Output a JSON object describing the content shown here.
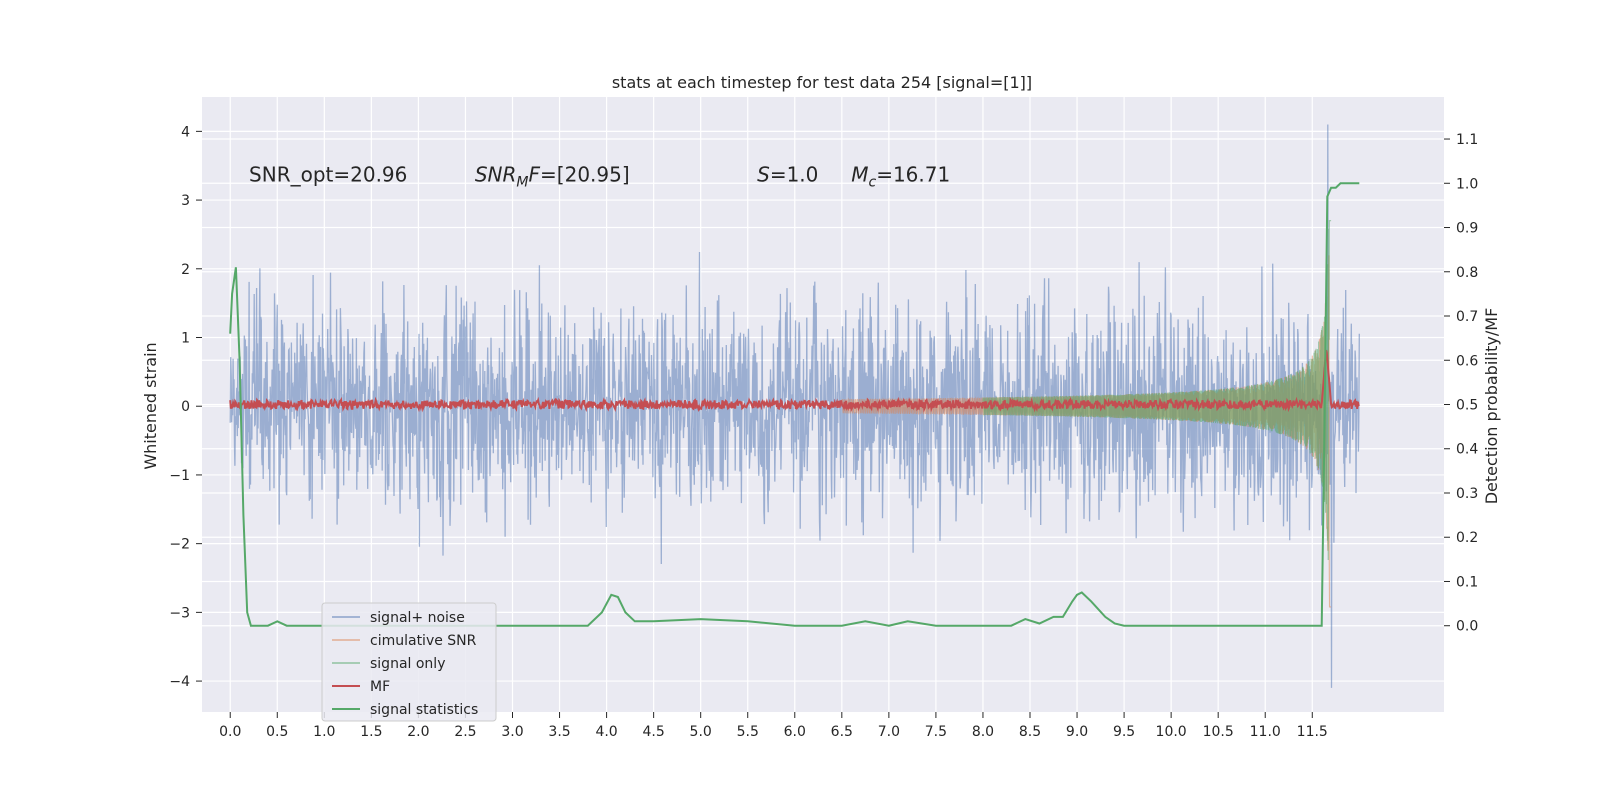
{
  "chart_data": {
    "type": "line",
    "title": "stats at each timestep for test data 254 [signal=[1]]",
    "xlabel": "",
    "ylabel": "Whitened strain",
    "y2label": "Detection probability/MF",
    "xlim": [
      -0.3,
      12.9
    ],
    "ylim": [
      -4.45,
      4.5
    ],
    "y2lim": [
      -0.195,
      1.195
    ],
    "xticks": [
      0.0,
      0.5,
      1.0,
      1.5,
      2.0,
      2.5,
      3.0,
      3.5,
      4.0,
      4.5,
      5.0,
      5.5,
      6.0,
      6.5,
      7.0,
      7.5,
      8.0,
      8.5,
      9.0,
      9.5,
      10.0,
      10.5,
      11.0,
      11.5
    ],
    "xtick_labels": [
      "0.0",
      "0.5",
      "1.0",
      "1.5",
      "2.0",
      "2.5",
      "3.0",
      "3.5",
      "4.0",
      "4.5",
      "5.0",
      "5.5",
      "6.0",
      "6.5",
      "7.0",
      "7.5",
      "8.0",
      "8.5",
      "9.0",
      "9.5",
      "10.0",
      "10.5",
      "11.0",
      "11.5"
    ],
    "yticks": [
      -4,
      -3,
      -2,
      -1,
      0,
      1,
      2,
      3,
      4
    ],
    "ytick_labels": [
      "−4",
      "−3",
      "−2",
      "−1",
      "0",
      "1",
      "2",
      "3",
      "4"
    ],
    "y2ticks": [
      0.0,
      0.1,
      0.2,
      0.3,
      0.4,
      0.5,
      0.6,
      0.7,
      0.8,
      0.9,
      1.0,
      1.1
    ],
    "y2tick_labels": [
      "0.0",
      "0.1",
      "0.2",
      "0.3",
      "0.4",
      "0.5",
      "0.6",
      "0.7",
      "0.8",
      "0.9",
      "1.0",
      "1.1"
    ],
    "grid": true,
    "legend_position": "lower-left",
    "annotations": [
      {
        "text": "SNR_opt=20.96",
        "x": 0.2,
        "y": 3.3
      },
      {
        "text": "SNR_MF=[20.95]",
        "x": 2.6,
        "y": 3.3
      },
      {
        "text": "S=1.0",
        "x": 5.6,
        "y": 3.3
      },
      {
        "text": "M_c=16.71",
        "x": 6.6,
        "y": 3.3
      }
    ],
    "series": [
      {
        "name": "signal+ noise",
        "color": "#4c72b0",
        "axis": "left",
        "description_values": "noise band",
        "x_range": [
          0.0,
          12.0
        ],
        "amplitude_rms": 0.75,
        "peak_max": 4.1,
        "peak_min": -4.1
      },
      {
        "name": "cimulative SNR",
        "color": "#dd8452",
        "axis": "left",
        "x_range": [
          6.5,
          11.7
        ],
        "envelope_end": 3.2
      },
      {
        "name": "signal only",
        "color": "#55a868",
        "axis": "left",
        "x_range": [
          8.0,
          11.7
        ],
        "envelope_end": 3.0
      },
      {
        "name": "MF",
        "color": "#c44e52",
        "axis": "right",
        "x_range": [
          0.0,
          12.0
        ],
        "baseline": 0.5,
        "peak": 0.63,
        "peak_x": 11.65
      },
      {
        "name": "signal statistics",
        "color": "#55a868",
        "axis": "right",
        "x": [
          0.0,
          0.02,
          0.06,
          0.1,
          0.14,
          0.18,
          0.22,
          0.3,
          0.4,
          0.5,
          0.6,
          0.7,
          0.8,
          1.0,
          1.5,
          2.0,
          2.5,
          3.0,
          3.5,
          3.8,
          3.95,
          4.05,
          4.12,
          4.2,
          4.3,
          4.5,
          5.0,
          5.5,
          6.0,
          6.5,
          6.75,
          7.0,
          7.2,
          7.5,
          8.0,
          8.3,
          8.45,
          8.6,
          8.75,
          8.85,
          8.95,
          9.0,
          9.05,
          9.15,
          9.3,
          9.4,
          9.5,
          10.0,
          10.5,
          11.0,
          11.5,
          11.55,
          11.6,
          11.63,
          11.66,
          11.7,
          11.75,
          11.8,
          11.9,
          12.0
        ],
        "values": [
          0.66,
          0.75,
          0.81,
          0.6,
          0.25,
          0.03,
          0.0,
          0.0,
          0.0,
          0.01,
          0.0,
          0.0,
          0.0,
          0.0,
          0.0,
          0.0,
          0.0,
          0.0,
          0.0,
          0.0,
          0.03,
          0.07,
          0.065,
          0.03,
          0.01,
          0.01,
          0.015,
          0.01,
          0.0,
          0.0,
          0.01,
          0.0,
          0.01,
          0.0,
          0.0,
          0.0,
          0.015,
          0.005,
          0.02,
          0.02,
          0.055,
          0.07,
          0.075,
          0.055,
          0.02,
          0.005,
          0.0,
          0.0,
          0.0,
          0.0,
          0.0,
          0.0,
          0.0,
          0.45,
          0.97,
          0.99,
          0.99,
          1.0,
          1.0,
          1.0
        ]
      }
    ]
  },
  "legend": {
    "items": [
      {
        "label": "signal+ noise",
        "color": "#4c72b0"
      },
      {
        "label": "cimulative SNR",
        "color": "#dd8452"
      },
      {
        "label": "signal only",
        "color": "#55a868"
      },
      {
        "label": "MF",
        "color": "#c44e52"
      },
      {
        "label": "signal statistics",
        "color": "#55a868"
      }
    ]
  }
}
